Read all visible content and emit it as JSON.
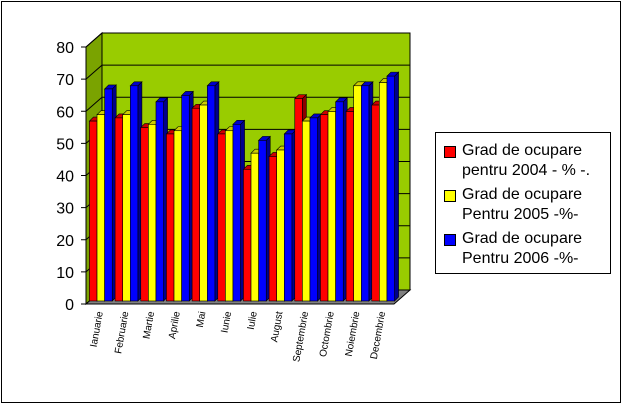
{
  "chart_data": {
    "type": "bar",
    "y_ticks": [
      "0",
      "10",
      "20",
      "30",
      "40",
      "50",
      "60",
      "70",
      "80"
    ],
    "ylim": [
      0,
      80
    ],
    "grid": true,
    "legend_position": "right",
    "categories": [
      "Ianuarie",
      "Februarie",
      "Martie",
      "Aprilie",
      "Mai",
      "Iunie",
      "Iulie",
      "August",
      "Septembrie",
      "Octombrie",
      "Noiembrie",
      "Decembrie"
    ],
    "series": [
      {
        "name": "Grad de ocupare pentru 2004 - % -.",
        "color": "#ff0000",
        "values": [
          56,
          57,
          54,
          52,
          60,
          52,
          41,
          45,
          63,
          58,
          59,
          61
        ]
      },
      {
        "name": "Grad de ocupare Pentru 2005 -%-",
        "color": "#ffff00",
        "values": [
          58,
          58,
          55,
          53,
          61,
          53,
          46,
          47,
          56,
          59,
          67,
          68
        ]
      },
      {
        "name": "Grad de ocupare Pentru 2006 -%-",
        "color": "#0000ff",
        "values": [
          66,
          67,
          62,
          64,
          67,
          55,
          50,
          52,
          57,
          62,
          67,
          70
        ]
      }
    ],
    "colors": {
      "wall": "#99cc00",
      "wall_side": "#7aa300",
      "floor": "#808080",
      "grid": "#000000"
    }
  }
}
